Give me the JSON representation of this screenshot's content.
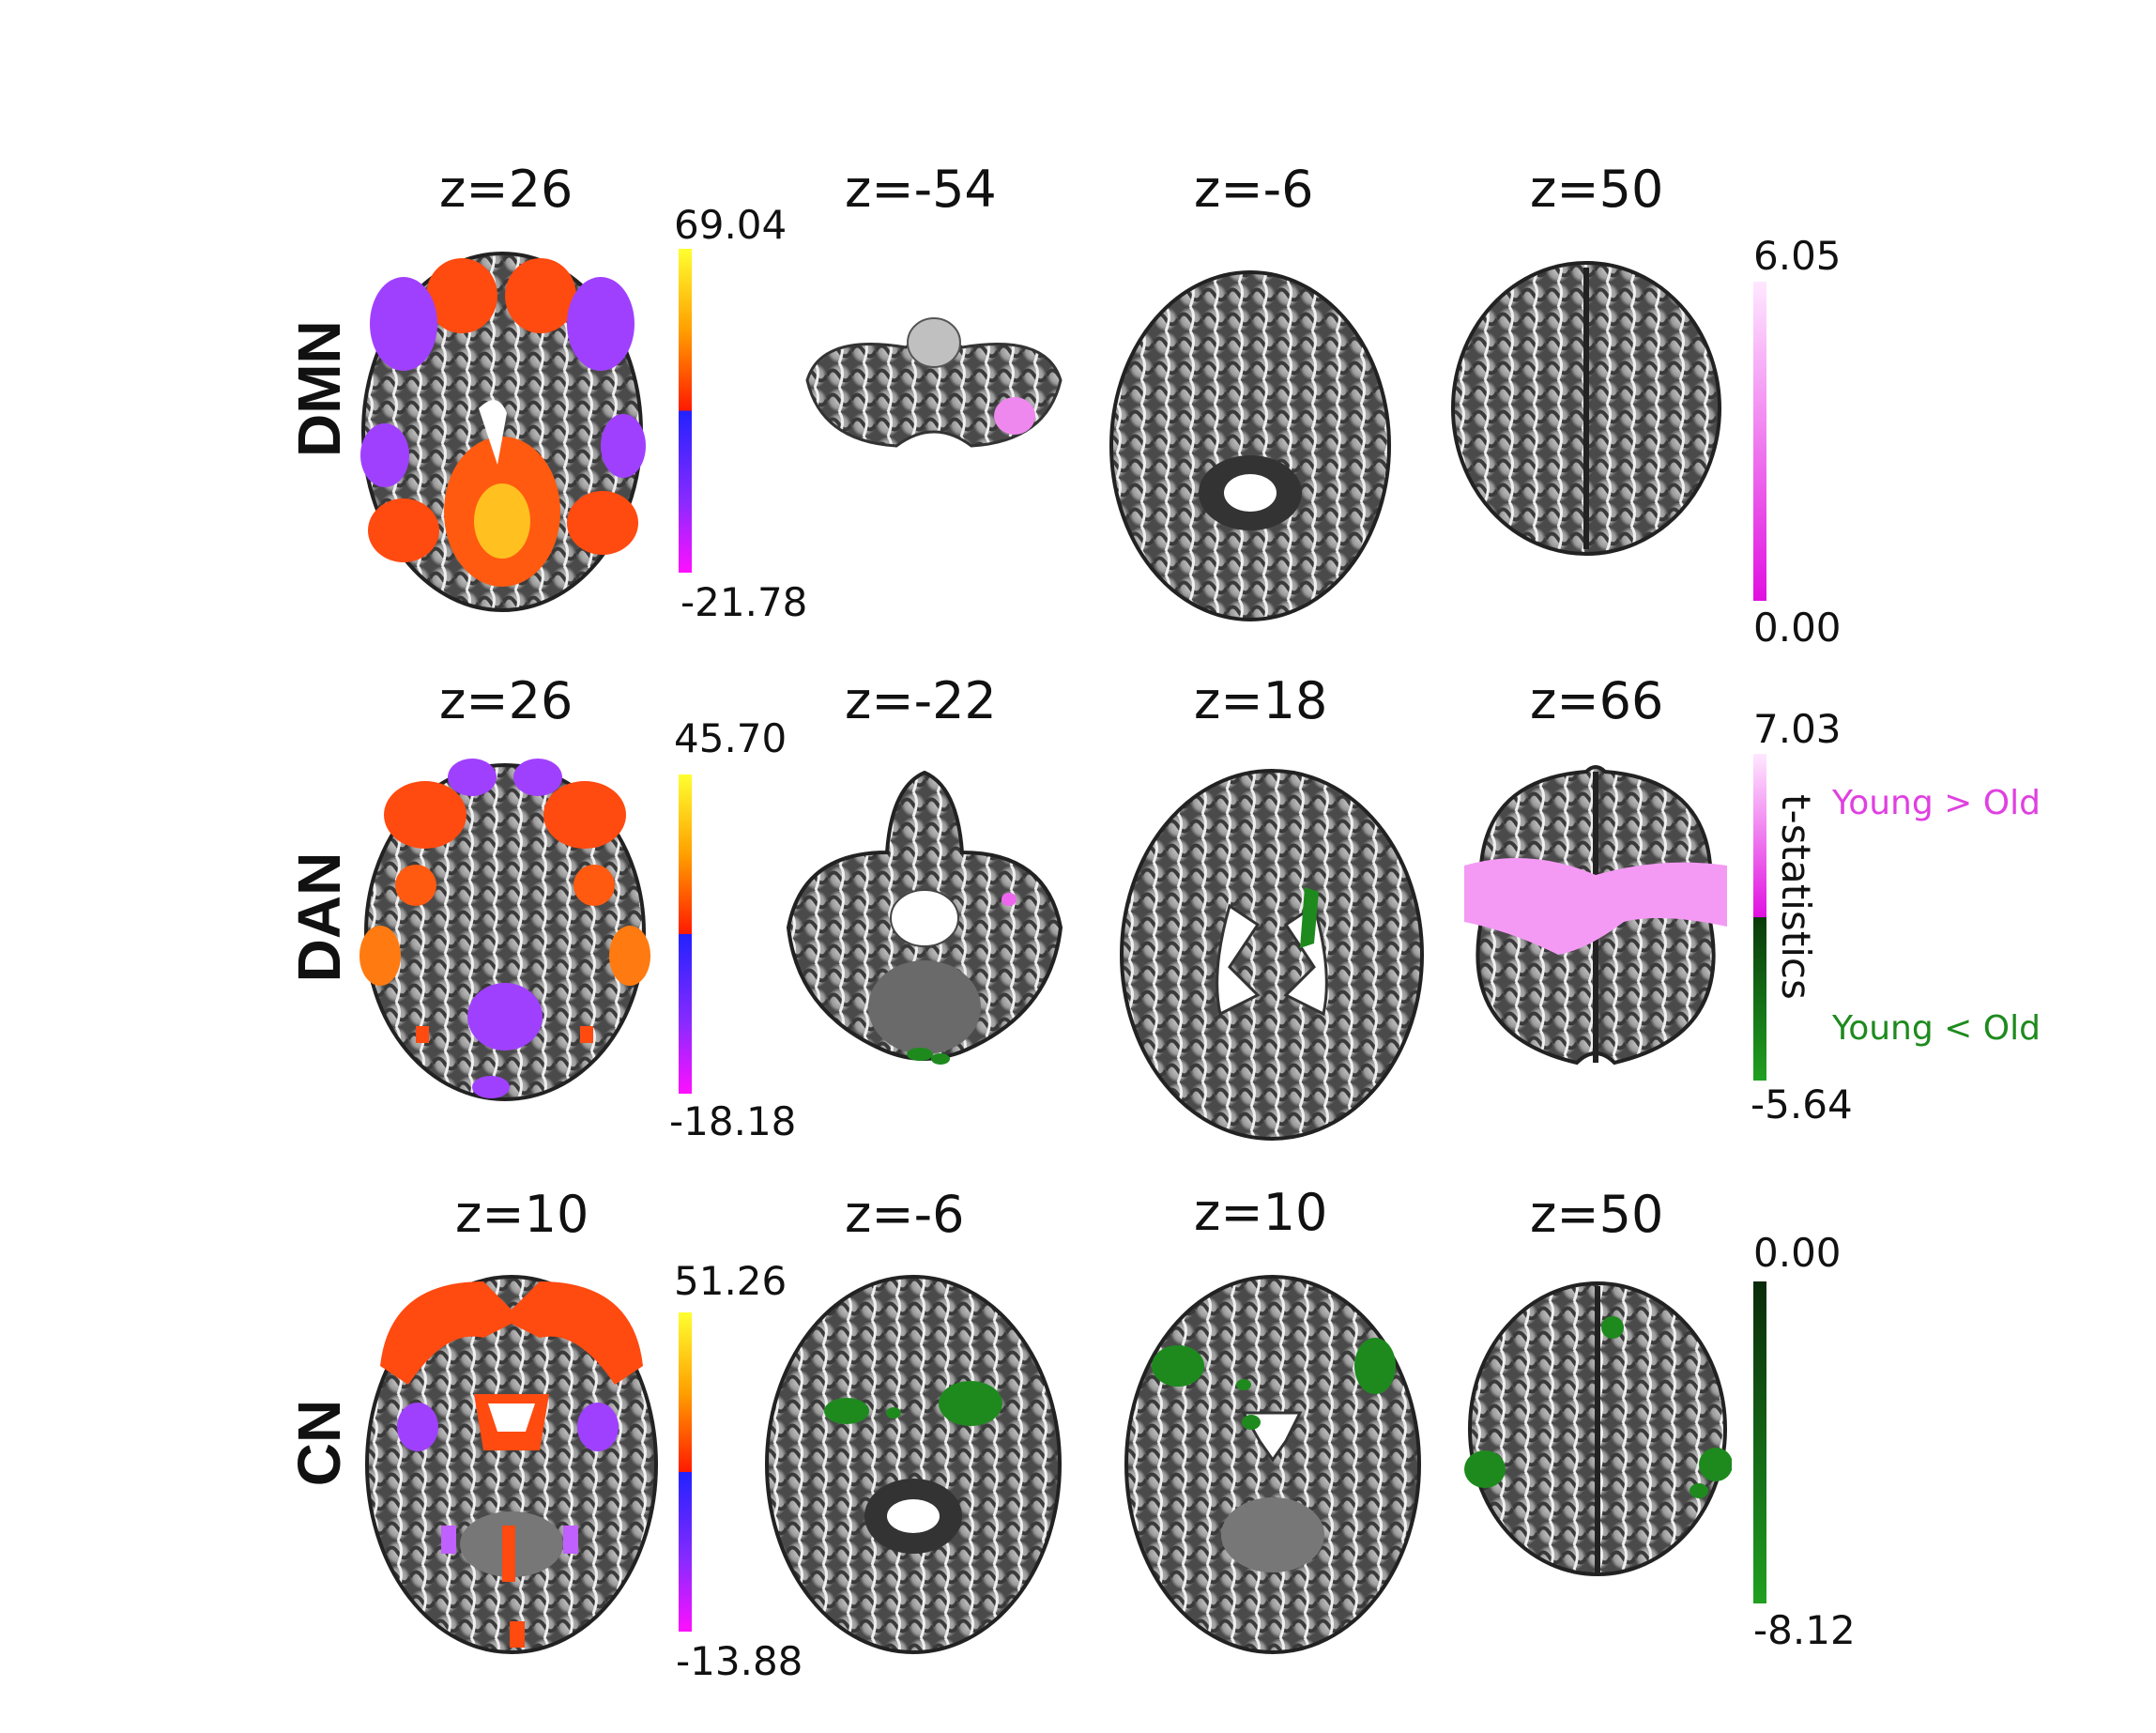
{
  "rows": [
    {
      "network": "DMN",
      "slices": [
        "z=26",
        "z=-54",
        "z=-6",
        "z=50"
      ],
      "network_colorbar": {
        "max": "69.04",
        "min": "-21.78"
      },
      "tstat_colorbar": {
        "max": "6.05",
        "min": "0.00"
      }
    },
    {
      "network": "DAN",
      "slices": [
        "z=26",
        "z=-22",
        "z=18",
        "z=66"
      ],
      "network_colorbar": {
        "max": "45.70",
        "min": "-18.18"
      },
      "tstat_colorbar": {
        "max": "7.03",
        "min": "-5.64"
      }
    },
    {
      "network": "CN",
      "slices": [
        "z=10",
        "z=-6",
        "z=10",
        "z=50"
      ],
      "network_colorbar": {
        "max": "51.26",
        "min": "-13.88"
      },
      "tstat_colorbar": {
        "max": "0.00",
        "min": "-8.12"
      }
    }
  ],
  "legend": {
    "axis_label": "t-statistics",
    "positive_label": "Young > Old",
    "negative_label": "Young < Old"
  },
  "colors": {
    "young_gt_old": "#e040e0",
    "young_lt_old": "#1e8a1e",
    "network_positive": "#ff4a10",
    "network_negative": "#a040ff"
  }
}
